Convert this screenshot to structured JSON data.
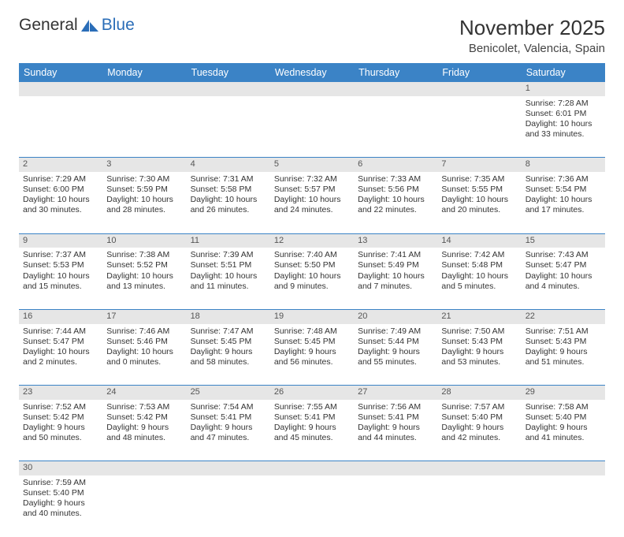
{
  "logo": {
    "text1": "General",
    "text2": "Blue"
  },
  "title": "November 2025",
  "location": "Benicolet, Valencia, Spain",
  "colors": {
    "header_bg": "#3b83c6",
    "header_fg": "#ffffff",
    "daynum_bg": "#e6e6e6",
    "row_divider": "#3b83c6",
    "text": "#333333",
    "logo_blue": "#2a6db8"
  },
  "dayHeaders": [
    "Sunday",
    "Monday",
    "Tuesday",
    "Wednesday",
    "Thursday",
    "Friday",
    "Saturday"
  ],
  "weeks": [
    [
      null,
      null,
      null,
      null,
      null,
      null,
      {
        "n": "1",
        "sr": "7:28 AM",
        "ss": "6:01 PM",
        "dl": "10 hours and 33 minutes."
      }
    ],
    [
      {
        "n": "2",
        "sr": "7:29 AM",
        "ss": "6:00 PM",
        "dl": "10 hours and 30 minutes."
      },
      {
        "n": "3",
        "sr": "7:30 AM",
        "ss": "5:59 PM",
        "dl": "10 hours and 28 minutes."
      },
      {
        "n": "4",
        "sr": "7:31 AM",
        "ss": "5:58 PM",
        "dl": "10 hours and 26 minutes."
      },
      {
        "n": "5",
        "sr": "7:32 AM",
        "ss": "5:57 PM",
        "dl": "10 hours and 24 minutes."
      },
      {
        "n": "6",
        "sr": "7:33 AM",
        "ss": "5:56 PM",
        "dl": "10 hours and 22 minutes."
      },
      {
        "n": "7",
        "sr": "7:35 AM",
        "ss": "5:55 PM",
        "dl": "10 hours and 20 minutes."
      },
      {
        "n": "8",
        "sr": "7:36 AM",
        "ss": "5:54 PM",
        "dl": "10 hours and 17 minutes."
      }
    ],
    [
      {
        "n": "9",
        "sr": "7:37 AM",
        "ss": "5:53 PM",
        "dl": "10 hours and 15 minutes."
      },
      {
        "n": "10",
        "sr": "7:38 AM",
        "ss": "5:52 PM",
        "dl": "10 hours and 13 minutes."
      },
      {
        "n": "11",
        "sr": "7:39 AM",
        "ss": "5:51 PM",
        "dl": "10 hours and 11 minutes."
      },
      {
        "n": "12",
        "sr": "7:40 AM",
        "ss": "5:50 PM",
        "dl": "10 hours and 9 minutes."
      },
      {
        "n": "13",
        "sr": "7:41 AM",
        "ss": "5:49 PM",
        "dl": "10 hours and 7 minutes."
      },
      {
        "n": "14",
        "sr": "7:42 AM",
        "ss": "5:48 PM",
        "dl": "10 hours and 5 minutes."
      },
      {
        "n": "15",
        "sr": "7:43 AM",
        "ss": "5:47 PM",
        "dl": "10 hours and 4 minutes."
      }
    ],
    [
      {
        "n": "16",
        "sr": "7:44 AM",
        "ss": "5:47 PM",
        "dl": "10 hours and 2 minutes."
      },
      {
        "n": "17",
        "sr": "7:46 AM",
        "ss": "5:46 PM",
        "dl": "10 hours and 0 minutes."
      },
      {
        "n": "18",
        "sr": "7:47 AM",
        "ss": "5:45 PM",
        "dl": "9 hours and 58 minutes."
      },
      {
        "n": "19",
        "sr": "7:48 AM",
        "ss": "5:45 PM",
        "dl": "9 hours and 56 minutes."
      },
      {
        "n": "20",
        "sr": "7:49 AM",
        "ss": "5:44 PM",
        "dl": "9 hours and 55 minutes."
      },
      {
        "n": "21",
        "sr": "7:50 AM",
        "ss": "5:43 PM",
        "dl": "9 hours and 53 minutes."
      },
      {
        "n": "22",
        "sr": "7:51 AM",
        "ss": "5:43 PM",
        "dl": "9 hours and 51 minutes."
      }
    ],
    [
      {
        "n": "23",
        "sr": "7:52 AM",
        "ss": "5:42 PM",
        "dl": "9 hours and 50 minutes."
      },
      {
        "n": "24",
        "sr": "7:53 AM",
        "ss": "5:42 PM",
        "dl": "9 hours and 48 minutes."
      },
      {
        "n": "25",
        "sr": "7:54 AM",
        "ss": "5:41 PM",
        "dl": "9 hours and 47 minutes."
      },
      {
        "n": "26",
        "sr": "7:55 AM",
        "ss": "5:41 PM",
        "dl": "9 hours and 45 minutes."
      },
      {
        "n": "27",
        "sr": "7:56 AM",
        "ss": "5:41 PM",
        "dl": "9 hours and 44 minutes."
      },
      {
        "n": "28",
        "sr": "7:57 AM",
        "ss": "5:40 PM",
        "dl": "9 hours and 42 minutes."
      },
      {
        "n": "29",
        "sr": "7:58 AM",
        "ss": "5:40 PM",
        "dl": "9 hours and 41 minutes."
      }
    ],
    [
      {
        "n": "30",
        "sr": "7:59 AM",
        "ss": "5:40 PM",
        "dl": "9 hours and 40 minutes."
      },
      null,
      null,
      null,
      null,
      null,
      null
    ]
  ],
  "labels": {
    "sunrise": "Sunrise:",
    "sunset": "Sunset:",
    "daylight": "Daylight:"
  }
}
